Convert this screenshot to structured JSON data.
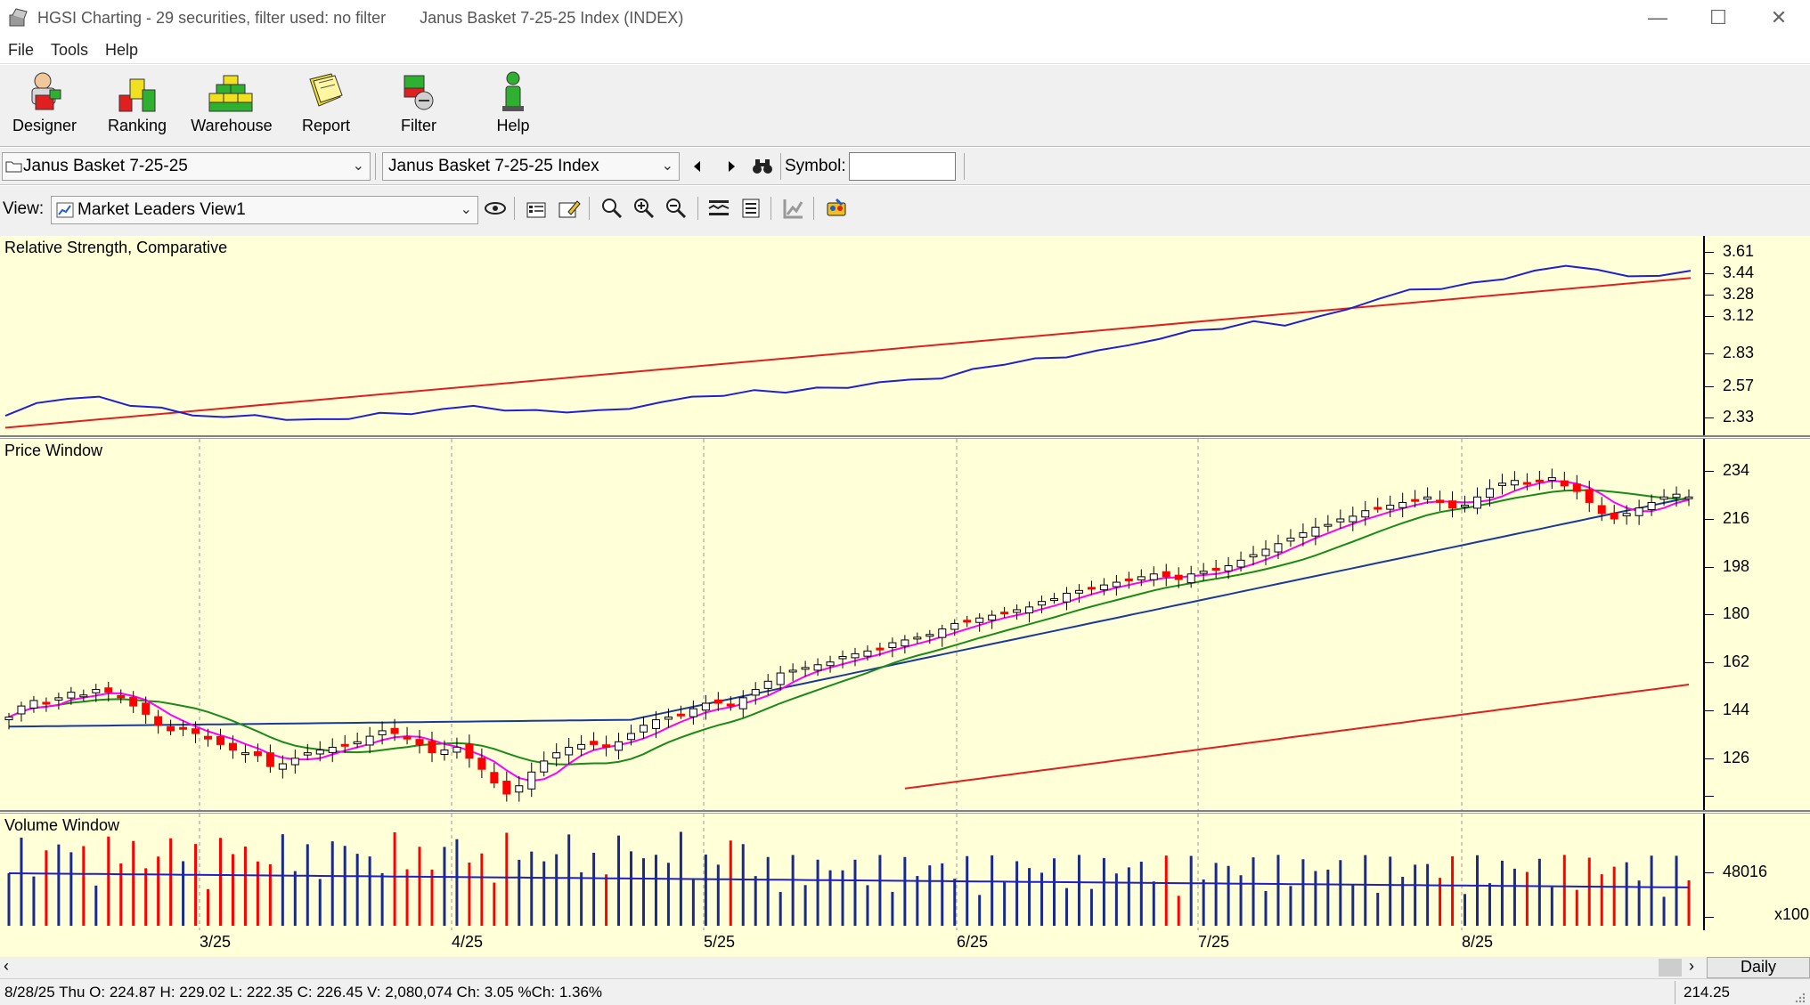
{
  "window": {
    "title": "HGSI Charting - 29 securities, filter used: no filter",
    "subtitle": "Janus Basket 7-25-25 Index (INDEX)",
    "controls": {
      "minimize": "—",
      "maximize": "☐",
      "close": "✕"
    }
  },
  "menu": {
    "items": [
      "File",
      "Tools",
      "Help"
    ]
  },
  "toolbar": {
    "buttons": [
      {
        "label": "Designer",
        "icon": "designer-icon"
      },
      {
        "label": "Ranking",
        "icon": "ranking-icon"
      },
      {
        "label": "Warehouse",
        "icon": "warehouse-icon"
      },
      {
        "label": "Report",
        "icon": "report-icon"
      },
      {
        "label": "Filter",
        "icon": "filter-icon"
      },
      {
        "label": "Help",
        "icon": "help-icon"
      }
    ]
  },
  "selectors": {
    "basket": "Janus Basket 7-25-25",
    "security": "Janus Basket 7-25-25 Index",
    "symbol_label": "Symbol:",
    "symbol_value": "",
    "view_label": "View:",
    "view_value": "Market Leaders View1"
  },
  "panes": {
    "rs": {
      "title": "Relative Strength, Comparative",
      "ticks": [
        "3.61",
        "3.44",
        "3.28",
        "3.12",
        "2.83",
        "2.57",
        "2.33"
      ]
    },
    "price": {
      "title": "Price Window",
      "ticks": [
        "234",
        "216",
        "198",
        "180",
        "162",
        "144",
        "126"
      ]
    },
    "volume": {
      "title": "Volume Window",
      "ticks": [
        "48016"
      ],
      "unit": "x100"
    }
  },
  "dates": [
    "3/25",
    "4/25",
    "5/25",
    "6/25",
    "7/25",
    "8/25"
  ],
  "period": "Daily",
  "status": {
    "ohlc": "8/28/25 Thu O: 224.87 H: 229.02 L: 222.35 C: 226.45 V: 2,080,074 Ch: 3.05 %Ch: 1.36%",
    "value": "214.25"
  },
  "colors": {
    "chart_bg": "#ffffd8",
    "rs_line": "#2020d0",
    "rs_ma": "#e02020",
    "up_candle": "#ffffff",
    "down_candle": "#ff0000",
    "ma_fast": "#ff00ff",
    "ma_mid": "#1a8a1a",
    "ma_slow": "#1a3a9a",
    "ma_long": "#e02020",
    "vol_up": "#1a2a8a",
    "vol_down": "#ff0000"
  },
  "chart_data": {
    "type": "candlestick",
    "title": "Janus Basket 7-25-25 Index (INDEX)",
    "x_range": [
      "3/25",
      "8/25"
    ],
    "price_ylim": [
      118,
      240
    ],
    "price_path": [
      146,
      150,
      152,
      151,
      153,
      155,
      154,
      156,
      155,
      153,
      150,
      147,
      143,
      141,
      142,
      140,
      138,
      136,
      134,
      133,
      132,
      128,
      129,
      131,
      133,
      134,
      135,
      136,
      137,
      139,
      141,
      140,
      138,
      136,
      133,
      134,
      135,
      131,
      127,
      122,
      118,
      121,
      126,
      130,
      133,
      135,
      136,
      136,
      135,
      137,
      140,
      143,
      145,
      146,
      147,
      149,
      151,
      151,
      150,
      153,
      156,
      159,
      162,
      163,
      164,
      165,
      166,
      168,
      169,
      170,
      171,
      173,
      174,
      175,
      176,
      178,
      180,
      181,
      182,
      183,
      184,
      185,
      186,
      188,
      189,
      191,
      192,
      193,
      194,
      195,
      196,
      197,
      198,
      197,
      196,
      198,
      199,
      200,
      201,
      203,
      205,
      207,
      209,
      211,
      213,
      215,
      216,
      218,
      219,
      221,
      222,
      223,
      224,
      225,
      226,
      224,
      222,
      223,
      226,
      229,
      231,
      232,
      231,
      232,
      233,
      230,
      228,
      224,
      220,
      218,
      220,
      222,
      224,
      226,
      227,
      226
    ],
    "moving_averages": [
      "ma_fast",
      "ma_mid",
      "ma_slow",
      "ma_long"
    ],
    "rs_ylim": [
      2.25,
      3.7
    ],
    "rs_path": [
      2.37,
      2.46,
      2.51,
      2.5,
      2.46,
      2.42,
      2.38,
      2.36,
      2.37,
      2.35,
      2.33,
      2.36,
      2.38,
      2.39,
      2.42,
      2.44,
      2.42,
      2.4,
      2.41,
      2.4,
      2.43,
      2.47,
      2.51,
      2.53,
      2.55,
      2.56,
      2.57,
      2.59,
      2.62,
      2.64,
      2.66,
      2.71,
      2.77,
      2.79,
      2.82,
      2.86,
      2.9,
      2.96,
      3.0,
      3.04,
      3.07,
      3.06,
      3.11,
      3.17,
      3.26,
      3.31,
      3.34,
      3.36,
      3.41,
      3.46,
      3.5,
      3.48,
      3.41,
      3.44,
      3.45
    ],
    "rs_ma_start": 2.28,
    "rs_ma_end": 3.41,
    "volume_ylim": [
      0,
      80000
    ],
    "volume_unit": "x100"
  }
}
